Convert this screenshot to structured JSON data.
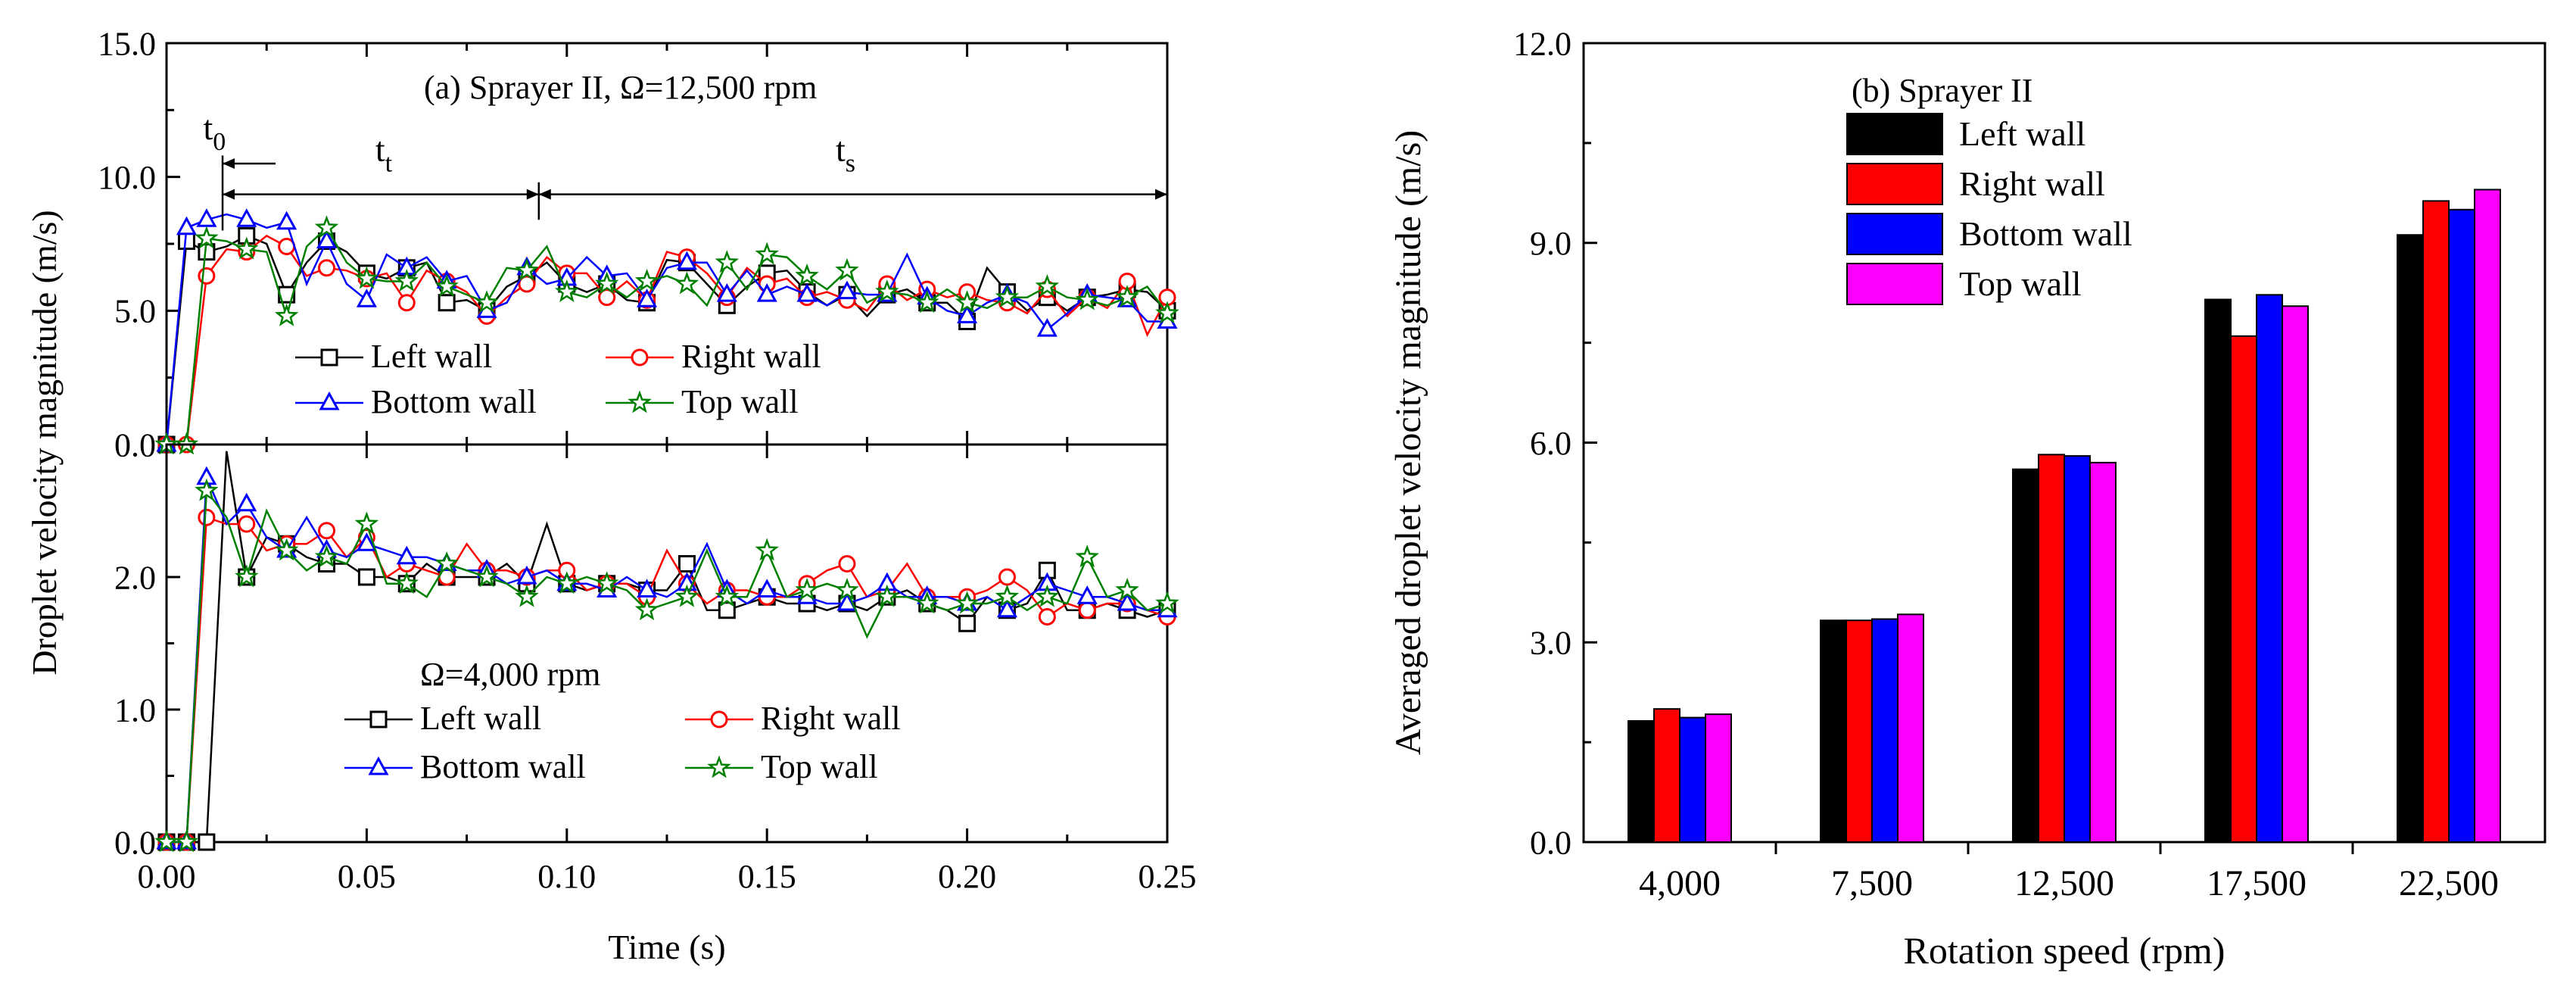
{
  "chart_data": [
    {
      "type": "line",
      "panel": "a",
      "ylabel": "Droplet velocity magnitude (m/s)",
      "xlabel": "Time (s)",
      "xlim": [
        0,
        0.25
      ],
      "xticks": [
        0.0,
        0.05,
        0.1,
        0.15,
        0.2,
        0.25
      ],
      "xtick_labels": [
        "0.00",
        "0.05",
        "0.10",
        "0.15",
        "0.20",
        "0.25"
      ],
      "series_colors": [
        "#000000",
        "#ff0000",
        "#0000ff",
        "#008000"
      ],
      "series_markers": [
        "square",
        "circle",
        "triangle",
        "star"
      ],
      "subplots": [
        {
          "id": "top",
          "title": "(a) Sprayer II, Ω=12,500 rpm",
          "ylim": [
            0,
            15
          ],
          "yticks": [
            0,
            5,
            10,
            15
          ],
          "ytick_labels": [
            "0.0",
            "5.0",
            "10.0",
            "15.0"
          ],
          "x": [
            0,
            0.005,
            0.01,
            0.015,
            0.02,
            0.025,
            0.03,
            0.035,
            0.04,
            0.045,
            0.05,
            0.055,
            0.06,
            0.065,
            0.07,
            0.075,
            0.08,
            0.085,
            0.09,
            0.095,
            0.1,
            0.105,
            0.11,
            0.115,
            0.12,
            0.125,
            0.13,
            0.135,
            0.14,
            0.145,
            0.15,
            0.155,
            0.16,
            0.165,
            0.17,
            0.175,
            0.18,
            0.185,
            0.19,
            0.195,
            0.2,
            0.205,
            0.21,
            0.215,
            0.22,
            0.225,
            0.23,
            0.235,
            0.24,
            0.245,
            0.25
          ],
          "series": [
            {
              "name": "Left wall",
              "values": [
                0,
                7.6,
                7.2,
                7.4,
                7.8,
                7.5,
                5.6,
                6.8,
                7.6,
                7.2,
                6.4,
                6.2,
                6.6,
                6.8,
                5.3,
                5.4,
                5.0,
                5.9,
                6.3,
                6.8,
                6.0,
                5.7,
                6.0,
                5.4,
                5.3,
                6.9,
                6.8,
                6.0,
                5.2,
                5.9,
                6.4,
                6.5,
                5.7,
                5.2,
                5.6,
                4.8,
                5.6,
                5.8,
                5.3,
                5.3,
                4.6,
                6.6,
                5.7,
                5.0,
                5.5,
                5.0,
                5.5,
                5.6,
                5.8,
                5.7,
                5.0
              ]
            },
            {
              "name": "Right wall",
              "values": [
                0,
                0,
                6.3,
                7.3,
                7.2,
                7.8,
                7.4,
                6.3,
                6.6,
                6.5,
                6.2,
                6.4,
                5.3,
                6.5,
                6.1,
                5.7,
                4.8,
                5.5,
                6.0,
                7.0,
                6.4,
                6.4,
                5.5,
                6.1,
                5.4,
                7.2,
                7.0,
                6.4,
                5.5,
                6.6,
                6.0,
                6.2,
                5.5,
                5.7,
                5.4,
                5.0,
                6.0,
                5.4,
                5.8,
                5.5,
                5.7,
                5.4,
                5.3,
                4.9,
                5.8,
                4.8,
                5.5,
                5.1,
                6.1,
                4.1,
                5.5
              ]
            },
            {
              "name": "Bottom wall",
              "values": [
                0,
                8.1,
                8.4,
                8.6,
                8.4,
                8.1,
                8.3,
                6.0,
                7.6,
                6.0,
                5.4,
                7.1,
                6.6,
                7.0,
                6.1,
                6.3,
                5.0,
                5.3,
                6.6,
                6.0,
                6.2,
                7.0,
                6.3,
                6.4,
                5.4,
                6.6,
                6.8,
                6.8,
                5.6,
                6.5,
                5.6,
                5.9,
                5.6,
                5.2,
                5.7,
                5.6,
                5.6,
                7.1,
                5.5,
                5.0,
                4.8,
                5.3,
                5.6,
                5.3,
                4.3,
                4.9,
                5.6,
                5.5,
                5.4,
                4.6,
                4.6
              ]
            },
            {
              "name": "Top wall",
              "values": [
                0,
                0,
                7.7,
                7.6,
                7.3,
                7.2,
                4.8,
                7.4,
                8.1,
                6.8,
                6.2,
                6.1,
                6.1,
                6.8,
                5.9,
                5.6,
                5.3,
                6.6,
                6.5,
                7.4,
                5.7,
                5.5,
                6.0,
                5.5,
                6.1,
                6.3,
                6.0,
                5.2,
                6.8,
                5.8,
                7.1,
                7.0,
                6.3,
                5.8,
                6.5,
                5.3,
                5.7,
                5.6,
                5.3,
                5.8,
                5.3,
                5.1,
                5.5,
                5.5,
                5.9,
                5.5,
                5.4,
                5.2,
                5.5,
                5.9,
                4.9
              ]
            }
          ],
          "annotations": [
            {
              "text": "t0",
              "main": "t",
              "sub": "0",
              "x": 0.012,
              "y": 11.4
            },
            {
              "text": "tt",
              "main": "t",
              "sub": "t",
              "x": 0.055,
              "y": 10.6
            },
            {
              "text": "ts",
              "main": "t",
              "sub": "s",
              "x": 0.17,
              "y": 10.6
            }
          ],
          "markers_x": [
            0.014,
            0.093
          ]
        },
        {
          "id": "bottom",
          "title": "Ω=4,000 rpm",
          "ylim": [
            0,
            3
          ],
          "yticks": [
            0,
            1,
            2
          ],
          "ytick_labels": [
            "0.0",
            "1.0",
            "2.0"
          ],
          "x": [
            0,
            0.005,
            0.01,
            0.015,
            0.02,
            0.025,
            0.03,
            0.035,
            0.04,
            0.045,
            0.05,
            0.055,
            0.06,
            0.065,
            0.07,
            0.075,
            0.08,
            0.085,
            0.09,
            0.095,
            0.1,
            0.105,
            0.11,
            0.115,
            0.12,
            0.125,
            0.13,
            0.135,
            0.14,
            0.145,
            0.15,
            0.155,
            0.16,
            0.165,
            0.17,
            0.175,
            0.18,
            0.185,
            0.19,
            0.195,
            0.2,
            0.205,
            0.21,
            0.215,
            0.22,
            0.225,
            0.23,
            0.235,
            0.24,
            0.245,
            0.25
          ],
          "series": [
            {
              "name": "Left wall",
              "values": [
                0,
                0,
                0,
                2.95,
                2.0,
                2.3,
                2.25,
                2.15,
                2.1,
                2.1,
                2.0,
                2.0,
                1.95,
                2.1,
                2.0,
                2.0,
                2.0,
                2.1,
                1.95,
                2.4,
                1.95,
                1.9,
                1.95,
                1.95,
                1.9,
                1.9,
                2.1,
                1.75,
                1.75,
                1.8,
                1.85,
                1.8,
                1.8,
                1.75,
                1.8,
                1.75,
                1.85,
                1.9,
                1.8,
                1.75,
                1.65,
                1.85,
                1.75,
                1.8,
                2.05,
                1.75,
                1.75,
                1.8,
                1.75,
                1.7,
                1.75
              ]
            },
            {
              "name": "Right wall",
              "values": [
                0,
                0,
                2.45,
                2.4,
                2.4,
                2.2,
                2.25,
                2.25,
                2.35,
                2.15,
                2.3,
                2.0,
                2.1,
                2.05,
                2.0,
                2.25,
                2.05,
                2.05,
                2.0,
                2.05,
                2.05,
                1.9,
                1.95,
                1.95,
                1.85,
                2.2,
                1.95,
                1.8,
                1.9,
                1.9,
                1.85,
                1.85,
                1.95,
                2.05,
                2.1,
                1.85,
                1.9,
                2.1,
                1.85,
                1.85,
                1.85,
                1.9,
                2.0,
                1.9,
                1.7,
                1.8,
                1.75,
                1.8,
                1.8,
                1.75,
                1.7
              ]
            },
            {
              "name": "Bottom wall",
              "values": [
                0,
                0,
                2.75,
                2.4,
                2.55,
                2.3,
                2.2,
                2.45,
                2.2,
                2.15,
                2.25,
                2.2,
                2.15,
                2.15,
                2.1,
                2.05,
                2.05,
                1.95,
                2.0,
                2.05,
                1.95,
                1.95,
                1.9,
                2.0,
                1.9,
                1.85,
                1.95,
                2.25,
                1.9,
                1.8,
                1.9,
                1.85,
                1.85,
                1.8,
                1.8,
                1.85,
                1.95,
                1.85,
                1.85,
                1.85,
                1.8,
                1.85,
                1.75,
                1.85,
                1.95,
                1.9,
                1.85,
                1.85,
                1.8,
                1.75,
                1.75
              ]
            },
            {
              "name": "Top wall",
              "values": [
                0,
                0,
                2.65,
                2.45,
                2.0,
                2.5,
                2.2,
                2.05,
                2.15,
                2.1,
                2.4,
                1.95,
                1.95,
                1.85,
                2.1,
                2.05,
                2.0,
                1.95,
                1.85,
                2.0,
                1.95,
                2.0,
                1.95,
                1.9,
                1.75,
                1.8,
                1.85,
                2.2,
                1.85,
                1.85,
                2.2,
                1.85,
                1.9,
                1.95,
                1.9,
                1.55,
                1.85,
                1.85,
                1.8,
                1.75,
                1.8,
                1.8,
                1.85,
                1.75,
                1.85,
                1.8,
                2.15,
                1.85,
                1.9,
                1.75,
                1.8
              ]
            }
          ]
        }
      ]
    },
    {
      "type": "bar",
      "panel": "b",
      "title": "(b) Sprayer II",
      "xlabel": "Rotation speed (rpm)",
      "ylabel": "Averaged droplet velocity magnitude (m/s)",
      "categories": [
        "4,000",
        "7,500",
        "12,500",
        "17,500",
        "22,500"
      ],
      "ylim": [
        0,
        12
      ],
      "yticks": [
        0,
        3,
        6,
        9,
        12
      ],
      "ytick_labels": [
        "0.0",
        "3.0",
        "6.0",
        "9.0",
        "12.0"
      ],
      "series": [
        {
          "name": "Left wall",
          "color": "#000000",
          "values": [
            1.82,
            3.33,
            5.6,
            8.15,
            9.12
          ]
        },
        {
          "name": "Right wall",
          "color": "#ff0000",
          "values": [
            2.0,
            3.33,
            5.82,
            7.6,
            9.63
          ]
        },
        {
          "name": "Bottom wall",
          "color": "#0000ff",
          "values": [
            1.87,
            3.35,
            5.8,
            8.22,
            9.5
          ]
        },
        {
          "name": "Top wall",
          "color": "#ff00ff",
          "values": [
            1.92,
            3.42,
            5.7,
            8.05,
            9.8
          ]
        }
      ]
    }
  ]
}
